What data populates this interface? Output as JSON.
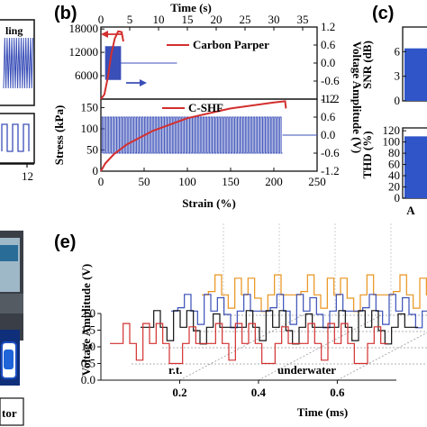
{
  "panels": {
    "a_text": "ling",
    "a_tick": "12",
    "b_label": "(b)",
    "c_label": "(c)",
    "e_label": "(e)",
    "c_tick_A": "A",
    "monitor_text": "tor"
  },
  "colors": {
    "red": "#d32f2f",
    "blue": "#3a4fb8",
    "black": "#111111",
    "orange": "#e8931c",
    "panel_c_bar": "#2f55c8"
  },
  "chart_data": [
    {
      "id": "b",
      "type": "line",
      "title": "",
      "top_axis": {
        "label": "Time (s)",
        "ticks": [
          0,
          5,
          10,
          15,
          20,
          25,
          30,
          35
        ],
        "range": [
          0,
          37.5
        ]
      },
      "bottom_axis": {
        "label": "Strain (%)",
        "ticks": [
          0,
          50,
          100,
          150,
          200,
          250
        ],
        "range": [
          0,
          250
        ]
      },
      "subplots": [
        {
          "name": "top",
          "left_axis": {
            "label": "Stress (kPa)",
            "ticks": [
              6000,
              12000,
              18000
            ],
            "range": [
              0,
              18500
            ]
          },
          "right_axis": {
            "label": "Voltage Amplitude (V)",
            "ticks": [
              -1.2,
              -0.6,
              0.0,
              0.6,
              1.2
            ],
            "range": [
              -1.2,
              1.2
            ]
          },
          "legend": "Carbon Parper",
          "series": [
            {
              "name": "Carbon Parper",
              "axis": "left",
              "x_unit": "strain_%",
              "x": [
                0,
                4,
                8,
                12,
                16,
                20,
                24,
                26
              ],
              "y": [
                0,
                1200,
                5500,
                11500,
                15500,
                17400,
                17200,
                14800
              ]
            },
            {
              "axis": "right",
              "x_unit": "time_s",
              "segments": [
                {
                  "x0": 0.8,
                  "x1": 3.5,
                  "low": -0.55,
                  "high": 0.55,
                  "cycles": 18
                },
                {
                  "x0": 3.5,
                  "x1": 13.2,
                  "flat": 0.0
                }
              ]
            }
          ]
        },
        {
          "name": "bottom",
          "left_axis": {
            "label": "",
            "ticks": [
              0,
              50,
              100,
              150
            ],
            "range": [
              0,
              170
            ]
          },
          "right_axis": {
            "label": "",
            "ticks": [
              -1.2,
              -0.6,
              0.0,
              0.6,
              1.2
            ],
            "range": [
              -1.2,
              1.2
            ]
          },
          "legend": "C-SHF",
          "series": [
            {
              "name": "C-SHF",
              "axis": "left",
              "x_unit": "strain_%",
              "x": [
                0,
                5,
                15,
                30,
                60,
                100,
                150,
                200,
                213,
                214
              ],
              "y": [
                0,
                18,
                40,
                63,
                95,
                125,
                148,
                162,
                165,
                148
              ]
            },
            {
              "axis": "right",
              "x_unit": "time_s",
              "segments": [
                {
                  "x0": 0.2,
                  "x1": 31.5,
                  "low": -0.6,
                  "high": 0.6,
                  "cycles": 68
                },
                {
                  "x0": 31.5,
                  "x1": 37.5,
                  "flat": 0.0
                }
              ]
            }
          ]
        }
      ]
    },
    {
      "id": "c",
      "type": "bar",
      "categories": [
        "A"
      ],
      "subplots": [
        {
          "ylabel": "SNR (dB)",
          "ticks": [
            0,
            3,
            6
          ],
          "ylim": [
            0,
            9
          ],
          "values": [
            6.4
          ]
        },
        {
          "ylabel": "THD (%)",
          "ticks": [
            0,
            20,
            40,
            60,
            80,
            100,
            120
          ],
          "ylim": [
            0,
            125
          ],
          "values": [
            110
          ]
        }
      ]
    },
    {
      "id": "e",
      "type": "line",
      "xlabel": "Time (ms)",
      "ylabel": "Voltage Amplitude (V)",
      "x_ticks": [
        0.2,
        0.4,
        0.6
      ],
      "y_ticks": [
        0.0,
        0.5,
        1.0,
        1.5,
        2.0
      ],
      "ylim": [
        0,
        2.0
      ],
      "annotations": [
        "r.t.",
        "underwater"
      ],
      "series": [
        {
          "color": "red",
          "depth": 0,
          "wave": [
            1.1,
            1.1,
            1.7,
            1.1,
            0.6,
            1.7,
            1.1,
            1.7,
            1.1,
            0.5,
            0.5,
            1.1,
            1.6,
            1.1
          ]
        },
        {
          "color": "black",
          "depth": 1,
          "wave": [
            1.1,
            1.1,
            1.6,
            1.1,
            0.7,
            1.6,
            1.1,
            1.6,
            1.0,
            0.6,
            1.1,
            1.5,
            1.1,
            1.1
          ]
        },
        {
          "color": "blue",
          "depth": 2,
          "wave": [
            1.1,
            1.2,
            1.6,
            1.1,
            0.7,
            1.6,
            1.1,
            1.5,
            1.0,
            0.6,
            1.1,
            1.6,
            1.1,
            1.1
          ]
        },
        {
          "color": "orange",
          "depth": 3,
          "wave": [
            1.1,
            1.2,
            1.7,
            1.1,
            0.7,
            1.6,
            1.1,
            1.6,
            1.0,
            0.6,
            1.1,
            1.7,
            1.1,
            1.1
          ]
        }
      ]
    }
  ]
}
